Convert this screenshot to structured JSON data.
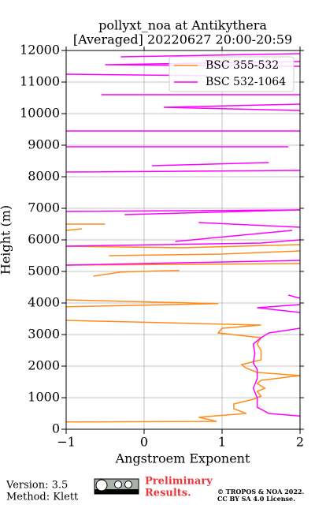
{
  "chart_data": {
    "type": "line",
    "title": "pollyxt_noa at Antikythera",
    "subtitle": "[Averaged] 20220627 20:00-20:59",
    "xlabel": "Angstroem Exponent",
    "ylabel": "Height (m)",
    "xlim": [
      -1,
      2
    ],
    "ylim": [
      0,
      12000
    ],
    "xticks": [
      {
        "value": -1,
        "label": "−1"
      },
      0,
      1,
      2
    ],
    "yticks": [
      0,
      1000,
      2000,
      3000,
      4000,
      5000,
      6000,
      7000,
      8000,
      9000,
      10000,
      11000,
      12000
    ],
    "grid": true,
    "legend": "upper right",
    "series": [
      {
        "name": "BSC 355-532",
        "color": "#ff8c1a",
        "x": [
          -1,
          0.93,
          0.7,
          1.31,
          1.15,
          1.15,
          1.4,
          1.5,
          1.45,
          1.55,
          1.45,
          1.5,
          2.0,
          1.45,
          1.3,
          1.25,
          1.5,
          1.5,
          1.45,
          1.5,
          0.95,
          1.0,
          1.5,
          -1,
          null,
          -1,
          0.95,
          -1,
          null,
          -0.65,
          -0.3,
          0.45,
          null,
          -1,
          2,
          null,
          -0.45,
          1.0,
          2,
          null,
          -1,
          0.5,
          2,
          null,
          -1,
          -0.8,
          null,
          -1,
          -0.5
        ],
        "y": [
          230,
          250,
          380,
          500,
          650,
          800,
          950,
          1050,
          1200,
          1300,
          1450,
          1550,
          1700,
          1800,
          1950,
          2050,
          2200,
          2500,
          2700,
          2900,
          3050,
          3200,
          3300,
          3450,
          null,
          3880,
          3980,
          4100,
          null,
          4850,
          4980,
          5030,
          null,
          5200,
          5250,
          null,
          5500,
          5550,
          5650,
          null,
          5800,
          5750,
          5850,
          null,
          6300,
          6350,
          null,
          6500,
          6500
        ]
      },
      {
        "name": "BSC 532-1064",
        "color": "#ff00ff",
        "x": [
          2.0,
          1.6,
          1.45,
          1.45,
          1.4,
          1.45,
          1.45,
          1.4,
          1.42,
          1.4,
          1.5,
          1.6,
          2.0,
          null,
          2,
          1.45,
          2,
          null,
          2,
          1.85,
          null,
          -1,
          2,
          null,
          -1,
          1.5,
          2,
          null,
          0.4,
          1.9,
          null,
          0.7,
          2,
          null,
          -0.25,
          2,
          null,
          -1,
          2,
          null,
          -1,
          2,
          null,
          0.1,
          1.6,
          null,
          -1,
          1.85,
          null,
          -1,
          2,
          null,
          2,
          0.25,
          2,
          null,
          -0.55,
          2,
          null,
          -1,
          0.8,
          null,
          2,
          -0.5,
          2,
          null,
          -0.3,
          2
        ],
        "y": [
          420,
          500,
          700,
          1000,
          1300,
          1600,
          1900,
          2100,
          2400,
          2700,
          2900,
          3050,
          3200,
          null,
          3700,
          3850,
          3950,
          null,
          4150,
          4250,
          null,
          5200,
          5350,
          null,
          5800,
          5900,
          6000,
          null,
          5950,
          6300,
          null,
          6550,
          6400,
          null,
          6800,
          6950,
          null,
          6900,
          6950,
          null,
          8150,
          8200,
          null,
          8350,
          8450,
          null,
          8950,
          8950,
          null,
          9450,
          9450,
          null,
          10100,
          10200,
          10300,
          null,
          10600,
          10600,
          null,
          11250,
          11200,
          null,
          11500,
          11550,
          11650,
          null,
          11800,
          11900
        ]
      }
    ]
  },
  "footer": {
    "version": "Version: 3.5",
    "method": "Method: Klett",
    "preliminary": "Preliminary",
    "results": "Results.",
    "copyright": "© TROPOS & NOA 2022.",
    "license": "CC BY SA 4.0 License."
  }
}
